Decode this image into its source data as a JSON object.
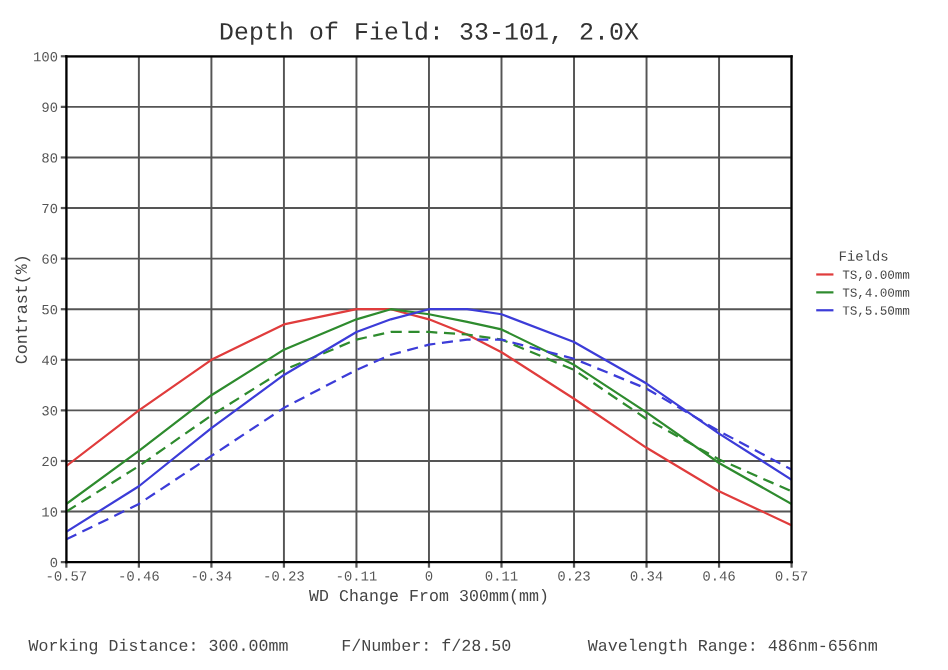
{
  "chart_data": {
    "type": "line",
    "title": "Depth of Field: 33-101, 2.0X",
    "xlabel": "WD Change From 300mm(mm)",
    "ylabel": "Contrast(%)",
    "legend_title": "Fields",
    "x": [
      -0.57,
      -0.456,
      -0.342,
      -0.228,
      -0.114,
      -0.06,
      0,
      0.06,
      0.114,
      0.228,
      0.342,
      0.456,
      0.57
    ],
    "series": [
      {
        "name": "TS,0.00mm",
        "color": "#e03c3c",
        "line_style": "solid",
        "values": [
          19,
          30,
          40,
          47,
          50,
          50,
          48,
          45,
          41.5,
          32.3,
          22.6,
          14,
          7.3
        ]
      },
      {
        "name": "TS,4.00mm",
        "color": "#2e8b2e",
        "line_style": "solid",
        "values": [
          11.5,
          22,
          33,
          42,
          48,
          50,
          49,
          47.5,
          46,
          39,
          29.6,
          19.6,
          11.5
        ]
      },
      {
        "color": "#2e8b2e",
        "line_style": "dashed",
        "values": [
          10,
          19,
          29,
          38,
          44,
          45.5,
          45.5,
          45,
          44,
          38,
          28.3,
          20.3,
          14
        ]
      },
      {
        "name": "TS,5.50mm",
        "color": "#3c3cd8",
        "line_style": "solid",
        "values": [
          6,
          15,
          26.5,
          37,
          45.5,
          48,
          50,
          50,
          49,
          43.5,
          35.3,
          25.4,
          16.3
        ]
      },
      {
        "color": "#3c3cd8",
        "line_style": "dashed",
        "values": [
          4.5,
          11.5,
          21,
          30.5,
          38,
          41,
          43,
          44,
          44,
          40.2,
          34.3,
          25.9,
          18.3
        ]
      }
    ],
    "xlim": [
      -0.57,
      0.57
    ],
    "ylim": [
      0,
      100
    ],
    "xticks": [
      -0.57,
      {
        "value": -0.456,
        "label": "-0.46"
      },
      {
        "value": -0.342,
        "label": "-0.34"
      },
      {
        "value": -0.228,
        "label": "-0.23"
      },
      {
        "value": -0.114,
        "label": "-0.11"
      },
      0,
      {
        "value": 0.114,
        "label": "0.11"
      },
      {
        "value": 0.228,
        "label": "0.23"
      },
      {
        "value": 0.342,
        "label": "0.34"
      },
      {
        "value": 0.456,
        "label": "0.46"
      },
      0.57
    ],
    "yticks": [
      0,
      10,
      20,
      30,
      40,
      50,
      60,
      70,
      80,
      90,
      100
    ],
    "grid": true,
    "legend": "right",
    "marker": "none",
    "annotations": [
      "Working Distance: 300.00mm",
      "F/Number: f/28.50",
      "Wavelength Range: 486nm-656nm"
    ]
  }
}
